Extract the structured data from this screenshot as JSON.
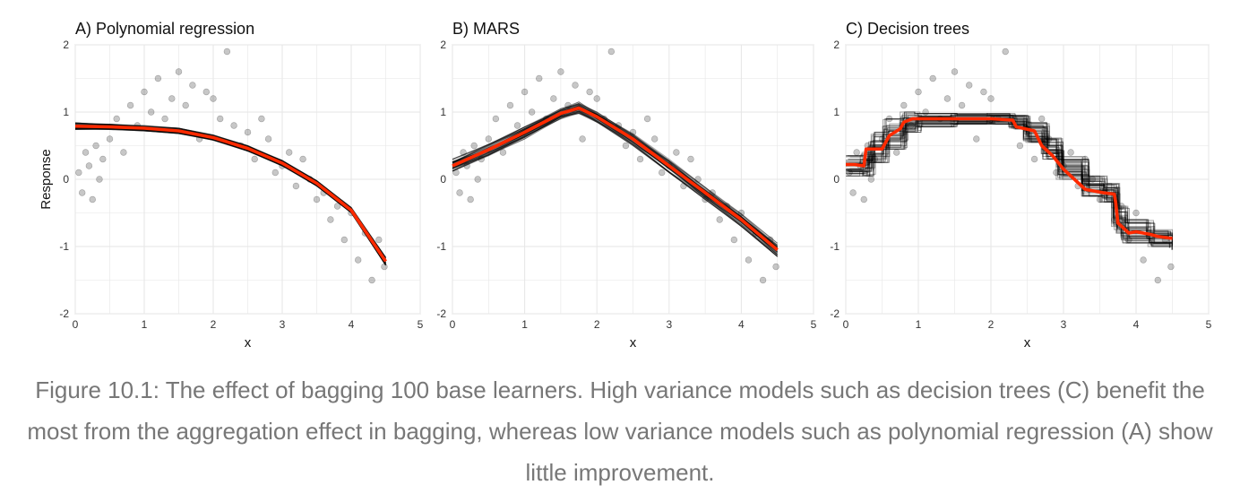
{
  "caption": "Figure 10.1: The effect of bagging 100 base learners. High variance models such as decision trees (C) benefit the most from the aggregation effect in bagging, whereas low variance models such as polynomial regression (A) show little improvement.",
  "colors": {
    "points": "#000000",
    "learners": "#000000",
    "average": "#ff2a00",
    "grid": "#e6e6e6",
    "panel_border": "#cccccc"
  },
  "chart_data": [
    {
      "type": "scatter",
      "title": "A) Polynomial regression",
      "xlabel": "x",
      "ylabel": "Response",
      "xlim": [
        0,
        5
      ],
      "ylim": [
        -2,
        2
      ],
      "xticks": [
        "0",
        "1",
        "2",
        "3",
        "4",
        "5"
      ],
      "yticks": [
        "-2",
        "-1",
        "0",
        "1",
        "2"
      ],
      "grid": true,
      "series": [
        {
          "kind": "points",
          "x": [
            0.05,
            0.1,
            0.15,
            0.2,
            0.25,
            0.3,
            0.35,
            0.4,
            0.5,
            0.6,
            0.7,
            0.8,
            0.9,
            1.0,
            1.1,
            1.2,
            1.3,
            1.4,
            1.5,
            1.6,
            1.7,
            1.8,
            1.9,
            2.0,
            2.1,
            2.2,
            2.3,
            2.4,
            2.5,
            2.6,
            2.7,
            2.8,
            2.9,
            3.0,
            3.1,
            3.2,
            3.3,
            3.4,
            3.5,
            3.6,
            3.7,
            3.8,
            3.9,
            4.0,
            4.1,
            4.2,
            4.3,
            4.4,
            4.48
          ],
          "y": [
            0.1,
            -0.2,
            0.4,
            0.2,
            -0.3,
            0.5,
            0.0,
            0.3,
            0.6,
            0.9,
            0.4,
            1.1,
            0.8,
            1.3,
            1.0,
            1.5,
            0.9,
            1.2,
            1.6,
            1.1,
            1.4,
            0.6,
            1.3,
            1.2,
            0.9,
            1.9,
            0.8,
            0.5,
            0.7,
            0.3,
            0.9,
            0.6,
            0.1,
            0.2,
            0.4,
            -0.1,
            0.3,
            0.0,
            -0.3,
            -0.2,
            -0.6,
            -0.4,
            -0.9,
            -0.5,
            -1.2,
            -0.8,
            -1.5,
            -0.9,
            -1.3
          ]
        },
        {
          "kind": "learners",
          "x": [
            0,
            0.5,
            1,
            1.5,
            2,
            2.5,
            3,
            3.5,
            4,
            4.5
          ],
          "y_low": [
            0.74,
            0.74,
            0.72,
            0.68,
            0.58,
            0.42,
            0.2,
            -0.1,
            -0.5,
            -1.28
          ],
          "y_high": [
            0.84,
            0.82,
            0.8,
            0.76,
            0.66,
            0.5,
            0.28,
            -0.02,
            -0.42,
            -1.16
          ]
        },
        {
          "kind": "average",
          "x": [
            0,
            0.5,
            1,
            1.5,
            2,
            2.5,
            3,
            3.5,
            4,
            4.5
          ],
          "y": [
            0.79,
            0.78,
            0.76,
            0.72,
            0.62,
            0.46,
            0.24,
            -0.06,
            -0.46,
            -1.22
          ]
        }
      ]
    },
    {
      "type": "scatter",
      "title": "B) MARS",
      "xlabel": "x",
      "ylabel": "",
      "xlim": [
        0,
        5
      ],
      "ylim": [
        -2,
        2
      ],
      "xticks": [
        "0",
        "1",
        "2",
        "3",
        "4",
        "5"
      ],
      "yticks": [
        "-2",
        "-1",
        "0",
        "1",
        "2"
      ],
      "grid": true,
      "series": [
        {
          "kind": "points",
          "x": [
            0.05,
            0.1,
            0.15,
            0.2,
            0.25,
            0.3,
            0.35,
            0.4,
            0.5,
            0.6,
            0.7,
            0.8,
            0.9,
            1.0,
            1.1,
            1.2,
            1.3,
            1.4,
            1.5,
            1.6,
            1.7,
            1.8,
            1.9,
            2.0,
            2.1,
            2.2,
            2.3,
            2.4,
            2.5,
            2.6,
            2.7,
            2.8,
            2.9,
            3.0,
            3.1,
            3.2,
            3.3,
            3.4,
            3.5,
            3.6,
            3.7,
            3.8,
            3.9,
            4.0,
            4.1,
            4.2,
            4.3,
            4.4,
            4.48
          ],
          "y": [
            0.1,
            -0.2,
            0.4,
            0.2,
            -0.3,
            0.5,
            0.0,
            0.3,
            0.6,
            0.9,
            0.4,
            1.1,
            0.8,
            1.3,
            1.0,
            1.5,
            0.9,
            1.2,
            1.6,
            1.1,
            1.4,
            0.6,
            1.3,
            1.2,
            0.9,
            1.9,
            0.8,
            0.5,
            0.7,
            0.3,
            0.9,
            0.6,
            0.1,
            0.2,
            0.4,
            -0.1,
            0.3,
            0.0,
            -0.3,
            -0.2,
            -0.6,
            -0.4,
            -0.9,
            -0.5,
            -1.2,
            -0.8,
            -1.5,
            -0.9,
            -1.3
          ]
        },
        {
          "kind": "learners",
          "x": [
            0,
            0.5,
            1.0,
            1.5,
            1.75,
            2.0,
            2.5,
            3.0,
            3.5,
            4.0,
            4.5
          ],
          "y_low": [
            0.12,
            0.35,
            0.6,
            0.9,
            0.98,
            0.85,
            0.5,
            0.1,
            -0.3,
            -0.7,
            -1.15
          ],
          "y_high": [
            0.3,
            0.52,
            0.78,
            1.05,
            1.15,
            1.0,
            0.68,
            0.3,
            -0.12,
            -0.5,
            -0.95
          ]
        },
        {
          "kind": "average",
          "x": [
            0,
            0.5,
            1.0,
            1.5,
            1.75,
            2.0,
            2.5,
            3.0,
            3.5,
            4.0,
            4.5
          ],
          "y": [
            0.2,
            0.44,
            0.7,
            0.98,
            1.06,
            0.93,
            0.6,
            0.2,
            -0.2,
            -0.6,
            -1.05
          ]
        }
      ]
    },
    {
      "type": "scatter",
      "title": "C) Decision trees",
      "xlabel": "x",
      "ylabel": "",
      "xlim": [
        0,
        5
      ],
      "ylim": [
        -2,
        2
      ],
      "xticks": [
        "0",
        "1",
        "2",
        "3",
        "4",
        "5"
      ],
      "yticks": [
        "-2",
        "-1",
        "0",
        "1",
        "2"
      ],
      "grid": true,
      "series": [
        {
          "kind": "points",
          "x": [
            0.05,
            0.1,
            0.15,
            0.2,
            0.25,
            0.3,
            0.35,
            0.4,
            0.5,
            0.6,
            0.7,
            0.8,
            0.9,
            1.0,
            1.1,
            1.2,
            1.3,
            1.4,
            1.5,
            1.6,
            1.7,
            1.8,
            1.9,
            2.0,
            2.1,
            2.2,
            2.3,
            2.4,
            2.5,
            2.6,
            2.7,
            2.8,
            2.9,
            3.0,
            3.1,
            3.2,
            3.3,
            3.4,
            3.5,
            3.6,
            3.7,
            3.8,
            3.9,
            4.0,
            4.1,
            4.2,
            4.3,
            4.4,
            4.48
          ],
          "y": [
            0.1,
            -0.2,
            0.4,
            0.2,
            -0.3,
            0.5,
            0.0,
            0.3,
            0.6,
            0.9,
            0.4,
            1.1,
            0.8,
            1.3,
            1.0,
            1.5,
            0.9,
            1.2,
            1.6,
            1.1,
            1.4,
            0.6,
            1.3,
            1.2,
            0.9,
            1.9,
            0.8,
            0.5,
            0.7,
            0.3,
            0.9,
            0.6,
            0.1,
            0.2,
            0.4,
            -0.1,
            0.3,
            0.0,
            -0.3,
            -0.2,
            -0.6,
            -0.4,
            -0.9,
            -0.5,
            -1.2,
            -0.8,
            -1.5,
            -0.9,
            -1.3
          ]
        },
        {
          "kind": "learners",
          "x": [
            0,
            0.25,
            0.35,
            0.55,
            0.8,
            1.0,
            1.5,
            2.0,
            2.3,
            2.5,
            2.75,
            2.95,
            3.3,
            3.55,
            3.72,
            3.85,
            4.2,
            4.5
          ],
          "y_low": [
            0.05,
            0.05,
            0.25,
            0.45,
            0.7,
            0.78,
            0.82,
            0.82,
            0.75,
            0.55,
            0.3,
            0.0,
            -0.25,
            -0.35,
            -0.8,
            -0.95,
            -1.0,
            -1.05
          ],
          "y_high": [
            0.35,
            0.4,
            0.7,
            0.9,
            1.0,
            0.98,
            0.98,
            0.98,
            0.95,
            0.85,
            0.62,
            0.35,
            0.05,
            -0.05,
            -0.4,
            -0.6,
            -0.75,
            -0.8
          ]
        },
        {
          "kind": "average",
          "x": [
            0,
            0.12,
            0.25,
            0.28,
            0.5,
            0.55,
            0.6,
            0.75,
            0.8,
            0.92,
            1.0,
            1.5,
            2.0,
            2.3,
            2.35,
            2.6,
            2.7,
            2.85,
            3.0,
            3.1,
            3.3,
            3.55,
            3.7,
            3.72,
            3.75,
            3.85,
            3.9,
            4.0,
            4.2,
            4.3,
            4.5
          ],
          "y": [
            0.22,
            0.22,
            0.2,
            0.45,
            0.45,
            0.55,
            0.65,
            0.75,
            0.85,
            0.9,
            0.9,
            0.9,
            0.9,
            0.88,
            0.78,
            0.72,
            0.5,
            0.35,
            0.15,
            0.05,
            -0.15,
            -0.2,
            -0.22,
            -0.35,
            -0.65,
            -0.75,
            -0.8,
            -0.78,
            -0.82,
            -0.85,
            -0.88
          ]
        }
      ]
    }
  ]
}
